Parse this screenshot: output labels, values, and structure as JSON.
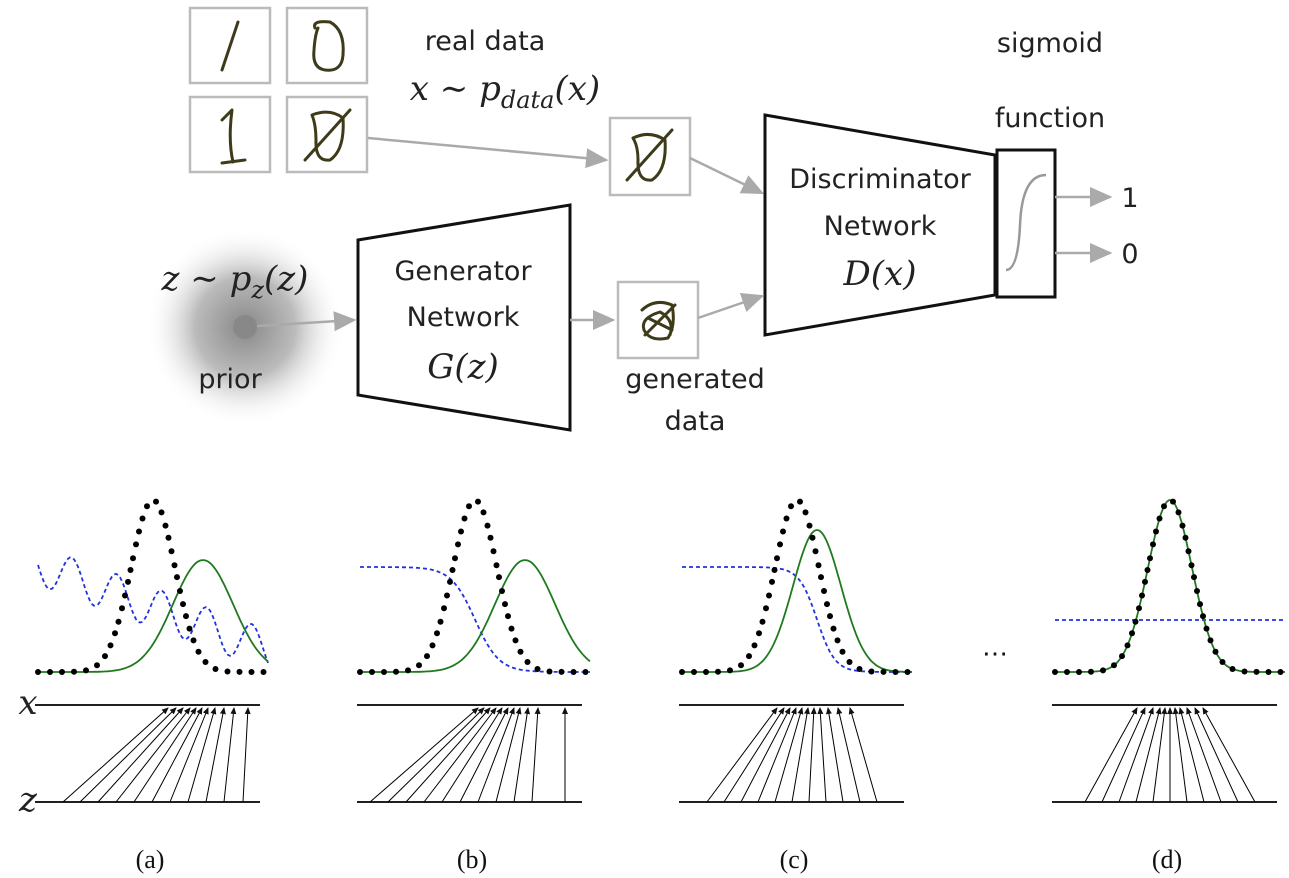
{
  "top": {
    "real_data": "real data",
    "real_formula": {
      "main": "x ∼ p",
      "sub": "data",
      "tail": "(x)"
    },
    "sigmoid": "sigmoid",
    "function": "function",
    "discriminator": [
      "Discriminator",
      "Network"
    ],
    "d_formula": "D(x)",
    "output_1": "1",
    "output_0": "0",
    "z_formula": {
      "main": "z ∼ p",
      "sub": "z",
      "tail": "(z)"
    },
    "prior": "prior",
    "generator": [
      "Generator",
      "Network"
    ],
    "g_formula": "G(z)",
    "generated": [
      "generated",
      "data"
    ]
  },
  "bottom": {
    "x_axis": "x",
    "z_axis": "z",
    "panels": [
      "(a)",
      "(b)",
      "(c)",
      "(d)"
    ],
    "ellipsis": "⋯"
  }
}
